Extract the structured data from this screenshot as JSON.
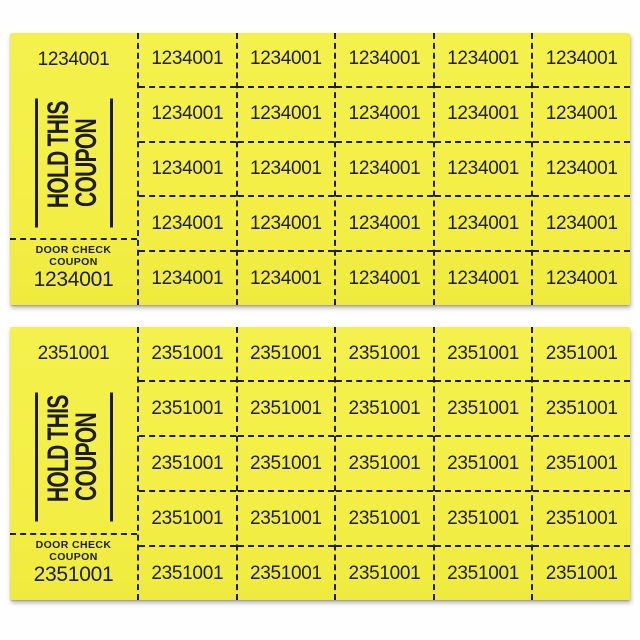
{
  "colors": {
    "paper": "#f3ef47",
    "ink": "#1c1c1c",
    "background": "#fefefe"
  },
  "sheets": [
    {
      "id": "top",
      "ticket_number": "1234001",
      "stub": {
        "top_number": "1234001",
        "hold_line1": "HOLD THIS",
        "hold_line2": "COUPON",
        "door_label_line1": "DOOR CHECK",
        "door_label_line2": "COUPON",
        "door_number": "1234001"
      },
      "grid": {
        "rows": 5,
        "cols": 5,
        "cell_number": "1234001"
      }
    },
    {
      "id": "bottom",
      "ticket_number": "2351001",
      "stub": {
        "top_number": "2351001",
        "hold_line1": "HOLD THIS",
        "hold_line2": "COUPON",
        "door_label_line1": "DOOR CHECK",
        "door_label_line2": "COUPON",
        "door_number": "2351001"
      },
      "grid": {
        "rows": 5,
        "cols": 5,
        "cell_number": "2351001"
      }
    }
  ]
}
